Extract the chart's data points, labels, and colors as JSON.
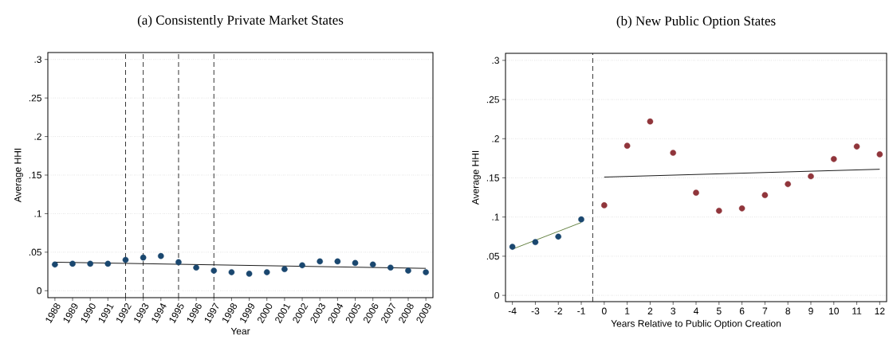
{
  "chart_data": [
    {
      "type": "scatter",
      "title": "(a) Consistently Private Market States",
      "xlabel": "Year",
      "ylabel": "Average HHI",
      "grid": "y",
      "xlim": [
        1987.6,
        2009.4
      ],
      "ylim": [
        -0.009,
        0.309
      ],
      "xticks": [
        1988,
        1989,
        1990,
        1991,
        1992,
        1993,
        1994,
        1995,
        1996,
        1997,
        1998,
        1999,
        2000,
        2001,
        2002,
        2003,
        2004,
        2005,
        2006,
        2007,
        2008,
        2009
      ],
      "yticks": [
        0,
        {
          "value": 0.05,
          "label": ".05"
        },
        {
          "value": 0.1,
          "label": ".1"
        },
        {
          "value": 0.15,
          "label": ".15"
        },
        {
          "value": 0.2,
          "label": ".2"
        },
        {
          "value": 0.25,
          "label": ".25"
        },
        {
          "value": 0.3,
          "label": ".3"
        }
      ],
      "series": [
        {
          "marker": "circle",
          "color": "#1a476f",
          "x": [
            1988,
            1989,
            1990,
            1991,
            1992,
            1993,
            1994,
            1995,
            1996,
            1997,
            1998,
            1999,
            2000,
            2001,
            2002,
            2003,
            2004,
            2005,
            2006,
            2007,
            2008,
            2009
          ],
          "values": [
            0.034,
            0.035,
            0.035,
            0.035,
            0.04,
            0.043,
            0.045,
            0.037,
            0.03,
            0.026,
            0.024,
            0.022,
            0.024,
            0.028,
            0.033,
            0.038,
            0.038,
            0.036,
            0.034,
            0.03,
            0.026,
            0.024
          ]
        },
        {
          "type": "line",
          "marker": "none",
          "color": "#000000",
          "x": [
            1988,
            2009
          ],
          "values": [
            0.037,
            0.029
          ]
        }
      ],
      "ref_lines": [
        {
          "axis": "x",
          "value": 1992,
          "line_style": "dashed",
          "color": "#000000"
        },
        {
          "axis": "x",
          "value": 1993,
          "line_style": "dashed",
          "color": "#000000"
        },
        {
          "axis": "x",
          "value": 1995,
          "line_style": "dashed",
          "color": "#000000"
        },
        {
          "axis": "x",
          "value": 1997,
          "line_style": "dashed",
          "color": "#000000"
        }
      ]
    },
    {
      "type": "scatter",
      "title": "(b) New Public Option States",
      "xlabel": "Years Relative to Public Option Creation",
      "ylabel": "Average HHI",
      "grid": "y",
      "xlim": [
        -4.3,
        12.3
      ],
      "ylim": [
        -0.008,
        0.309
      ],
      "xticks": [
        -4,
        -3,
        -2,
        -1,
        0,
        1,
        2,
        3,
        4,
        5,
        6,
        7,
        8,
        9,
        10,
        11,
        12
      ],
      "yticks": [
        0,
        {
          "value": 0.05,
          "label": ".05"
        },
        {
          "value": 0.1,
          "label": ".1"
        },
        {
          "value": 0.15,
          "label": ".15"
        },
        {
          "value": 0.2,
          "label": ".2"
        },
        {
          "value": 0.25,
          "label": ".25"
        },
        {
          "value": 0.3,
          "label": ".3"
        }
      ],
      "series": [
        {
          "marker": "circle",
          "color": "#1a476f",
          "x": [
            -4,
            -3,
            -2,
            -1
          ],
          "values": [
            0.062,
            0.068,
            0.075,
            0.097
          ]
        },
        {
          "marker": "circle",
          "color": "#90353b",
          "x": [
            0,
            1,
            2,
            3,
            4,
            5,
            6,
            7,
            8,
            9,
            10,
            11,
            12
          ],
          "values": [
            0.115,
            0.191,
            0.222,
            0.182,
            0.131,
            0.108,
            0.111,
            0.128,
            0.142,
            0.152,
            0.174,
            0.19,
            0.18
          ]
        },
        {
          "type": "line",
          "marker": "none",
          "color": "#55752f",
          "x": [
            -4,
            -1
          ],
          "values": [
            0.059,
            0.093
          ]
        },
        {
          "type": "line",
          "marker": "none",
          "color": "#000000",
          "x": [
            0,
            12
          ],
          "values": [
            0.151,
            0.161
          ]
        }
      ],
      "ref_lines": [
        {
          "axis": "x",
          "value": -0.5,
          "line_style": "dashed",
          "color": "#000000"
        }
      ]
    }
  ]
}
